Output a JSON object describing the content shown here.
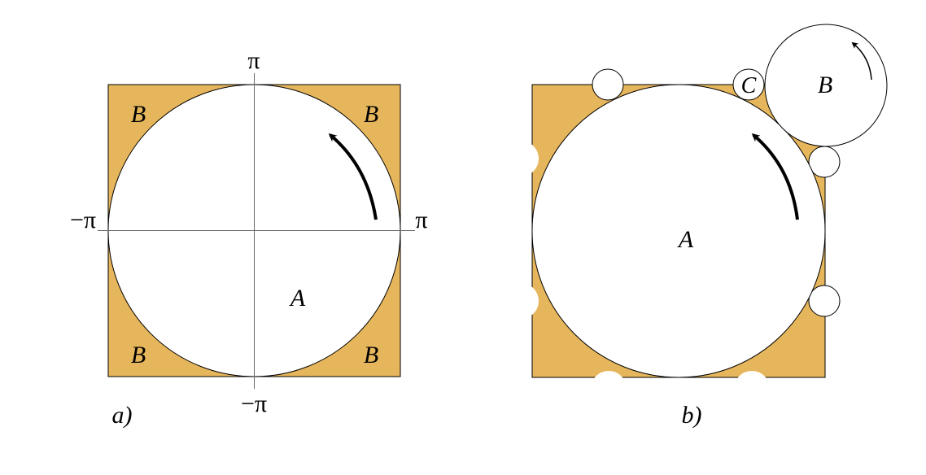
{
  "colors": {
    "fill": "#E6B65C",
    "stroke": "#000000",
    "axis": "#666666",
    "background": "#ffffff"
  },
  "panel_a": {
    "caption": "a)",
    "axis_labels": {
      "top": "π",
      "bottom": "−π",
      "left": "−π",
      "right": "π"
    },
    "corner_labels": [
      "B",
      "B",
      "B",
      "B"
    ],
    "circle_label": "A",
    "arrow": "counterclockwise"
  },
  "panel_b": {
    "caption": "b)",
    "big_circle_label": "A",
    "outer_circle_label": "B",
    "small_circle_label": "C",
    "arrow_big": "counterclockwise",
    "arrow_outer": "counterclockwise"
  }
}
